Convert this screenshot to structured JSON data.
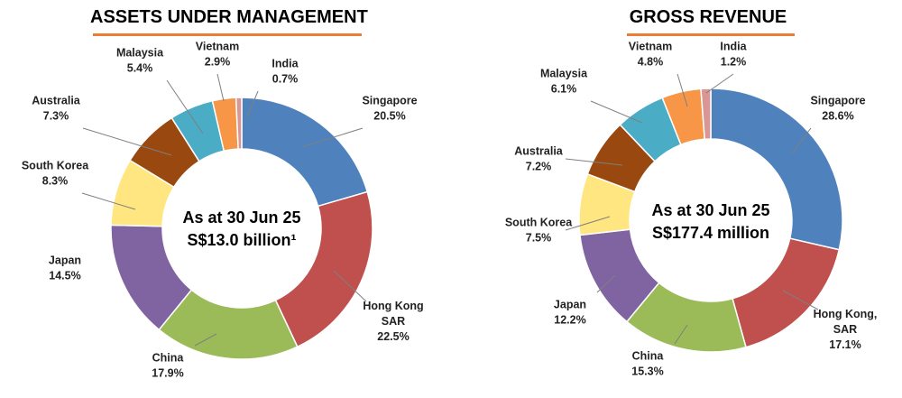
{
  "chart_data": [
    {
      "type": "pie",
      "variant": "donut",
      "title": "ASSETS UNDER MANAGEMENT",
      "center_lines": [
        "As at 30 Jun 25",
        "S$13.0 billion¹"
      ],
      "unit": "%",
      "series": [
        {
          "name": "Singapore",
          "label_lines": [
            "Singapore"
          ],
          "value": 20.5,
          "value_text": "20.5%",
          "color": "#4f81bd"
        },
        {
          "name": "Hong Kong SAR",
          "label_lines": [
            "Hong Kong",
            "SAR"
          ],
          "value": 22.5,
          "value_text": "22.5%",
          "color": "#c0504d"
        },
        {
          "name": "China",
          "label_lines": [
            "China"
          ],
          "value": 17.9,
          "value_text": "17.9%",
          "color": "#9bbb59"
        },
        {
          "name": "Japan",
          "label_lines": [
            "Japan"
          ],
          "value": 14.5,
          "value_text": "14.5%",
          "color": "#8064a2"
        },
        {
          "name": "South Korea",
          "label_lines": [
            "South Korea"
          ],
          "value": 8.3,
          "value_text": "8.3%",
          "color": "#ffe680"
        },
        {
          "name": "Australia",
          "label_lines": [
            "Australia"
          ],
          "value": 7.3,
          "value_text": "7.3%",
          "color": "#99490f"
        },
        {
          "name": "Malaysia",
          "label_lines": [
            "Malaysia"
          ],
          "value": 5.4,
          "value_text": "5.4%",
          "color": "#4bacc6"
        },
        {
          "name": "Vietnam",
          "label_lines": [
            "Vietnam"
          ],
          "value": 2.9,
          "value_text": "2.9%",
          "color": "#f79646"
        },
        {
          "name": "India",
          "label_lines": [
            "India"
          ],
          "value": 0.7,
          "value_text": "0.7%",
          "color": "#d99694"
        }
      ]
    },
    {
      "type": "pie",
      "variant": "donut",
      "title": "GROSS REVENUE",
      "center_lines": [
        "As at 30 Jun 25",
        "S$177.4 million"
      ],
      "unit": "%",
      "series": [
        {
          "name": "Singapore",
          "label_lines": [
            "Singapore"
          ],
          "value": 28.6,
          "value_text": "28.6%",
          "color": "#4f81bd"
        },
        {
          "name": "Hong Kong, SAR",
          "label_lines": [
            "Hong Kong,",
            "SAR"
          ],
          "value": 17.1,
          "value_text": "17.1%",
          "color": "#c0504d"
        },
        {
          "name": "China",
          "label_lines": [
            "China"
          ],
          "value": 15.3,
          "value_text": "15.3%",
          "color": "#9bbb59"
        },
        {
          "name": "Japan",
          "label_lines": [
            "Japan"
          ],
          "value": 12.2,
          "value_text": "12.2%",
          "color": "#8064a2"
        },
        {
          "name": "South Korea",
          "label_lines": [
            "South Korea"
          ],
          "value": 7.5,
          "value_text": "7.5%",
          "color": "#ffe680"
        },
        {
          "name": "Australia",
          "label_lines": [
            "Australia"
          ],
          "value": 7.2,
          "value_text": "7.2%",
          "color": "#99490f"
        },
        {
          "name": "Malaysia",
          "label_lines": [
            "Malaysia"
          ],
          "value": 6.1,
          "value_text": "6.1%",
          "color": "#4bacc6"
        },
        {
          "name": "Vietnam",
          "label_lines": [
            "Vietnam"
          ],
          "value": 4.8,
          "value_text": "4.8%",
          "color": "#f79646"
        },
        {
          "name": "India",
          "label_lines": [
            "India"
          ],
          "value": 1.2,
          "value_text": "1.2%",
          "color": "#d99694"
        }
      ]
    }
  ],
  "style": {
    "accent_underline": "#ed7d31"
  }
}
